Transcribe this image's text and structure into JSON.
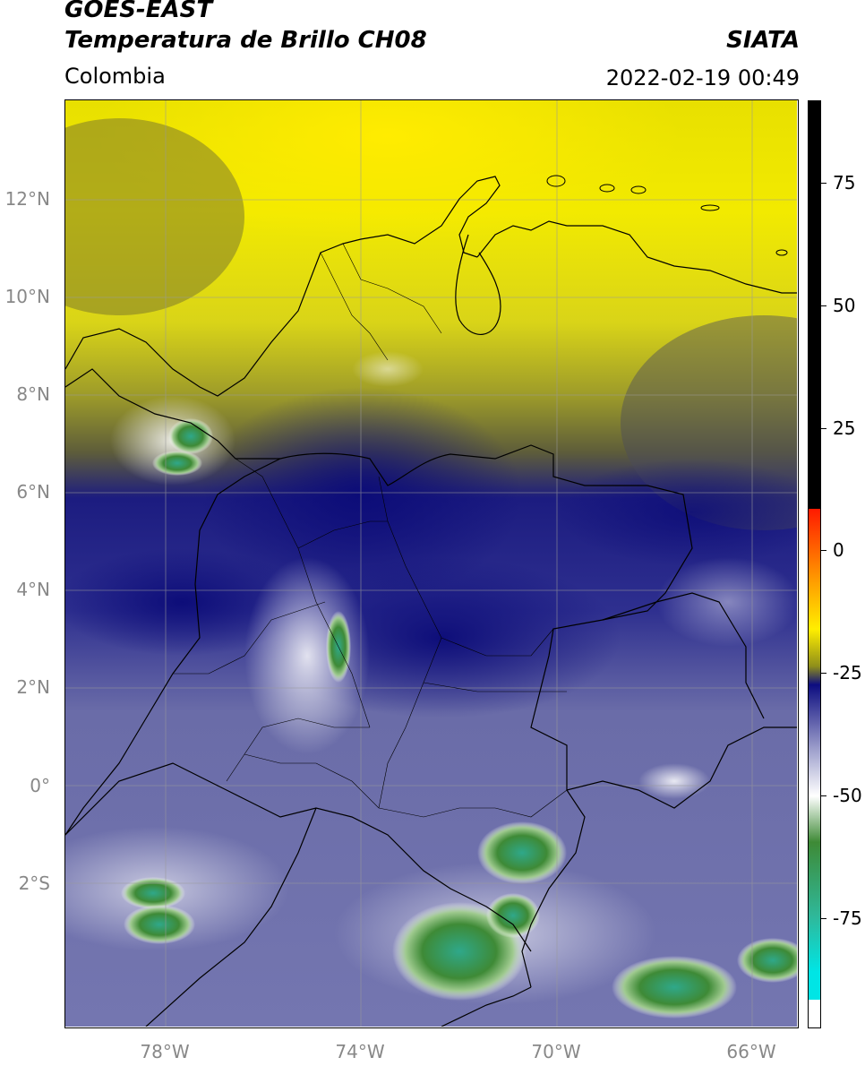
{
  "header": {
    "title_line1": "GOES-EAST",
    "title_line2": "Temperatura de Brillo CH08",
    "organization": "SIATA",
    "region": "Colombia",
    "timestamp": "2022-02-19 00:49"
  },
  "map": {
    "lat_labels": [
      "12°N",
      "10°N",
      "8°N",
      "6°N",
      "4°N",
      "2°N",
      "0°",
      "2°S"
    ],
    "lon_labels": [
      "78°W",
      "74°W",
      "70°W",
      "66°W"
    ]
  },
  "colorbar": {
    "labels": [
      "75",
      "50",
      "25",
      "0",
      "-25",
      "-50",
      "-75"
    ],
    "colors": {
      "black": "#000000",
      "red": "#ff1a00",
      "orange": "#ffa000",
      "yellow": "#ffee00",
      "olive": "#8f8f1a",
      "dark_blue": "#0d0d80",
      "lavender": "#9ea0cc",
      "white": "#ffffff",
      "green": "#3e8a36",
      "teal": "#2fb89a",
      "cyan": "#00e5e5"
    }
  }
}
